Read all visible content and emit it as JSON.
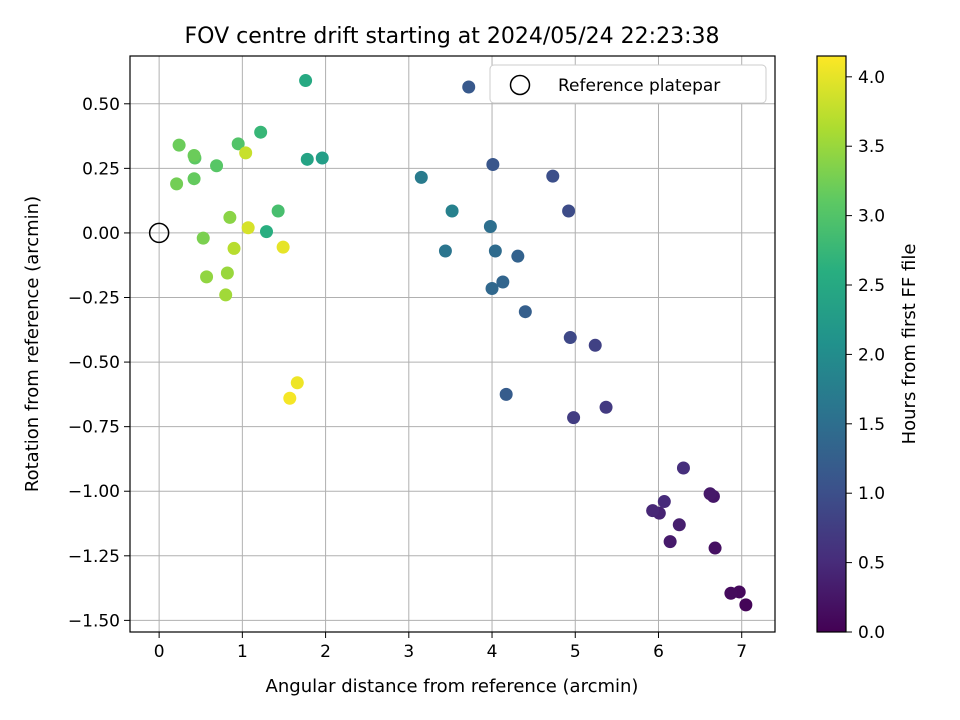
{
  "chart_data": {
    "type": "scatter",
    "title": "FOV centre drift starting at 2024/05/24 22:23:38",
    "xlabel": "Angular distance from reference (arcmin)",
    "ylabel": "Rotation from reference (arcmin)",
    "colorbar_label": "Hours from first FF file",
    "xlim": [
      -0.35,
      7.4
    ],
    "ylim": [
      -1.545,
      0.685
    ],
    "x_ticks": [
      0,
      1,
      2,
      3,
      4,
      5,
      6,
      7
    ],
    "y_ticks": [
      -1.5,
      -1.25,
      -1.0,
      -0.75,
      -0.5,
      -0.25,
      0.0,
      0.25,
      0.5
    ],
    "y_tick_labels": [
      "−1.50",
      "−1.25",
      "−1.00",
      "−0.75",
      "−0.50",
      "−0.25",
      "0.00",
      "0.25",
      "0.50"
    ],
    "colorbar_range": [
      0,
      4.15
    ],
    "colorbar_ticks": [
      0.0,
      0.5,
      1.0,
      1.5,
      2.0,
      2.5,
      3.0,
      3.5,
      4.0
    ],
    "colorbar_tick_labels": [
      "0.0",
      "0.5",
      "1.0",
      "1.5",
      "2.0",
      "2.5",
      "3.0",
      "3.5",
      "4.0"
    ],
    "colormap": "viridis",
    "grid": true,
    "legend_position": "top-right",
    "legend_entries": [
      "Reference platepar"
    ],
    "reference_point": {
      "x": 0,
      "y": 0
    },
    "points": [
      {
        "x": 7.05,
        "y": -1.44,
        "h": 0.05
      },
      {
        "x": 6.97,
        "y": -1.39,
        "h": 0.1
      },
      {
        "x": 6.87,
        "y": -1.395,
        "h": 0.12
      },
      {
        "x": 6.68,
        "y": -1.22,
        "h": 0.18
      },
      {
        "x": 6.66,
        "y": -1.02,
        "h": 0.25
      },
      {
        "x": 6.62,
        "y": -1.01,
        "h": 0.28
      },
      {
        "x": 6.14,
        "y": -1.195,
        "h": 0.3
      },
      {
        "x": 6.25,
        "y": -1.13,
        "h": 0.35
      },
      {
        "x": 6.01,
        "y": -1.085,
        "h": 0.4
      },
      {
        "x": 5.93,
        "y": -1.075,
        "h": 0.45
      },
      {
        "x": 6.07,
        "y": -1.04,
        "h": 0.5
      },
      {
        "x": 6.3,
        "y": -0.91,
        "h": 0.55
      },
      {
        "x": 5.37,
        "y": -0.675,
        "h": 0.7
      },
      {
        "x": 4.98,
        "y": -0.715,
        "h": 0.75
      },
      {
        "x": 5.24,
        "y": -0.435,
        "h": 0.8
      },
      {
        "x": 4.94,
        "y": -0.405,
        "h": 0.9
      },
      {
        "x": 4.92,
        "y": 0.085,
        "h": 0.95
      },
      {
        "x": 4.73,
        "y": 0.22,
        "h": 1.0
      },
      {
        "x": 4.01,
        "y": 0.265,
        "h": 1.1
      },
      {
        "x": 3.72,
        "y": 0.565,
        "h": 1.15
      },
      {
        "x": 4.17,
        "y": -0.625,
        "h": 1.2
      },
      {
        "x": 4.4,
        "y": -0.305,
        "h": 1.25
      },
      {
        "x": 4.31,
        "y": -0.09,
        "h": 1.3
      },
      {
        "x": 4.13,
        "y": -0.19,
        "h": 1.35
      },
      {
        "x": 4.0,
        "y": -0.215,
        "h": 1.4
      },
      {
        "x": 4.04,
        "y": -0.07,
        "h": 1.45
      },
      {
        "x": 3.98,
        "y": 0.025,
        "h": 1.5
      },
      {
        "x": 3.44,
        "y": -0.07,
        "h": 1.6
      },
      {
        "x": 3.15,
        "y": 0.215,
        "h": 1.7
      },
      {
        "x": 3.52,
        "y": 0.085,
        "h": 1.8
      },
      {
        "x": 1.96,
        "y": 0.29,
        "h": 2.3
      },
      {
        "x": 1.78,
        "y": 0.285,
        "h": 2.4
      },
      {
        "x": 1.76,
        "y": 0.59,
        "h": 2.5
      },
      {
        "x": 1.29,
        "y": 0.005,
        "h": 2.6
      },
      {
        "x": 1.22,
        "y": 0.39,
        "h": 2.75
      },
      {
        "x": 1.43,
        "y": 0.085,
        "h": 2.9
      },
      {
        "x": 0.95,
        "y": 0.345,
        "h": 3.0
      },
      {
        "x": 0.69,
        "y": 0.26,
        "h": 3.05
      },
      {
        "x": 0.43,
        "y": 0.29,
        "h": 3.1
      },
      {
        "x": 0.42,
        "y": 0.21,
        "h": 3.15
      },
      {
        "x": 0.24,
        "y": 0.34,
        "h": 3.2
      },
      {
        "x": 0.42,
        "y": 0.3,
        "h": 3.2
      },
      {
        "x": 0.21,
        "y": 0.19,
        "h": 3.25
      },
      {
        "x": 0.53,
        "y": -0.02,
        "h": 3.3
      },
      {
        "x": 0.85,
        "y": 0.06,
        "h": 3.4
      },
      {
        "x": 0.57,
        "y": -0.17,
        "h": 3.45
      },
      {
        "x": 0.82,
        "y": -0.155,
        "h": 3.5
      },
      {
        "x": 0.8,
        "y": -0.24,
        "h": 3.55
      },
      {
        "x": 0.9,
        "y": -0.06,
        "h": 3.7
      },
      {
        "x": 1.04,
        "y": 0.31,
        "h": 3.8
      },
      {
        "x": 1.07,
        "y": 0.02,
        "h": 3.9
      },
      {
        "x": 1.49,
        "y": -0.055,
        "h": 4.0
      },
      {
        "x": 1.66,
        "y": -0.58,
        "h": 4.05
      },
      {
        "x": 1.57,
        "y": -0.64,
        "h": 4.1
      }
    ]
  }
}
